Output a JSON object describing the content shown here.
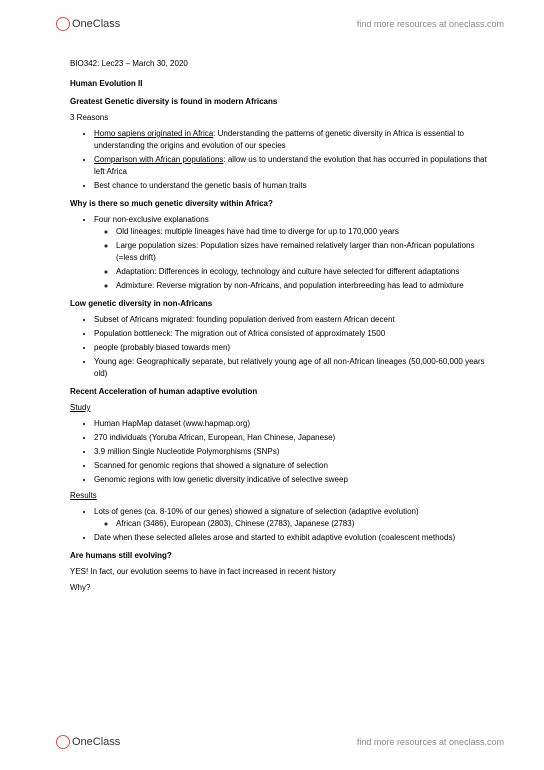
{
  "header": {
    "logo_text": "OneClass",
    "link_text": "find more resources at oneclass.com"
  },
  "footer": {
    "logo_text": "OneClass",
    "link_text": "find more resources at oneclass.com"
  },
  "doc": {
    "course_line": "BIO342: Lec23 – March 30, 2020",
    "title": "Human Evolution II",
    "section1": {
      "heading": "Greatest Genetic diversity is found in modern Africans",
      "subheading": "3 Reasons",
      "items": [
        {
          "lead": "Homo sapiens originated in Africa",
          "rest": ": Understanding the patterns of genetic diversity in Africa is essential to understanding the origins and evolution of our species"
        },
        {
          "lead": "Comparison with African populations",
          "rest": ": allow us to understand the evolution that has occurred in populations that left Africa"
        },
        {
          "lead": "",
          "rest": "Best chance to understand the genetic basis of human traits"
        }
      ]
    },
    "section2": {
      "heading": "Why is there so much genetic diversity within Africa?",
      "items": [
        {
          "text": "Four non-exclusive explanations",
          "subitems": [
            "Old lineages: multiple lineages have had time to diverge for up to 170,000 years",
            "Large population sizes: Population sizes have remained relatively larger than non-African populations (=less drift)",
            "Adaptation: Differences in ecology, technology and culture have selected for different adaptations",
            "Admixture: Reverse migration by non-Africans, and population interbreeding has lead to admixture"
          ]
        }
      ]
    },
    "section3": {
      "heading": "Low genetic diversity in non-Africans",
      "items": [
        "Subset of Africans migrated: founding population derived from eastern African decent",
        "Population bottleneck: The migration out of Africa consisted of approximately 1500",
        "people (probably biased towards men)",
        "Young age: Geographically separate, but relatively young age of all non-African lineages (50,000-60,000 years old)"
      ]
    },
    "section4": {
      "heading": "Recent Acceleration of human adaptive evolution",
      "study_label": "Study",
      "study_items": [
        "Human HapMap dataset (www.hapmap.org)",
        "270 individuals (Yoruba African, European, Han Chinese, Japanese)",
        "3.9 million Single Nucleotide Polymorphisms (SNPs)",
        "Scanned for genomic regions that showed a signature of selection",
        "Genomic regions with low genetic diversity indicative of selective sweep"
      ],
      "results_label": "Results",
      "results_items": [
        {
          "text": "Lots of genes (ca. 8-10% of our genes) showed a signature of selection (adaptive evolution)",
          "subitems": [
            "African (3486), European (2803), Chinese (2783), Japanese (2783)"
          ]
        },
        {
          "text": "Date when these selected alleles arose and started to exhibit adaptive evolution (coalescent methods)",
          "subitems": []
        }
      ]
    },
    "section5": {
      "heading": "Are humans still evolving?",
      "answer": "YES! In fact, our evolution seems to have in fact increased in recent history",
      "why": "Why?"
    }
  }
}
